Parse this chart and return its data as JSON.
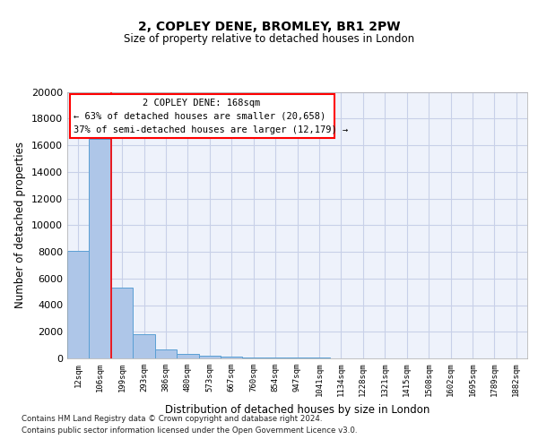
{
  "title1": "2, COPLEY DENE, BROMLEY, BR1 2PW",
  "title2": "Size of property relative to detached houses in London",
  "xlabel": "Distribution of detached houses by size in London",
  "ylabel": "Number of detached properties",
  "categories": [
    "12sqm",
    "106sqm",
    "199sqm",
    "293sqm",
    "386sqm",
    "480sqm",
    "573sqm",
    "667sqm",
    "760sqm",
    "854sqm",
    "947sqm",
    "1041sqm",
    "1134sqm",
    "1228sqm",
    "1321sqm",
    "1415sqm",
    "1508sqm",
    "1602sqm",
    "1695sqm",
    "1789sqm",
    "1882sqm"
  ],
  "values": [
    8100,
    16500,
    5300,
    1800,
    650,
    350,
    200,
    130,
    90,
    70,
    55,
    40,
    30,
    22,
    16,
    12,
    9,
    7,
    5,
    4,
    3
  ],
  "bar_color": "#aec6e8",
  "bar_edge_color": "#5a9fd4",
  "red_line_x": 1.5,
  "annotation_line1": "2 COPLEY DENE: 168sqm",
  "annotation_line2": "← 63% of detached houses are smaller (20,658)",
  "annotation_line3": "37% of semi-detached houses are larger (12,179) →",
  "ylim": [
    0,
    20000
  ],
  "background_color": "#eef2fb",
  "grid_color": "#c8d0e8",
  "footnote1": "Contains HM Land Registry data © Crown copyright and database right 2024.",
  "footnote2": "Contains public sector information licensed under the Open Government Licence v3.0."
}
